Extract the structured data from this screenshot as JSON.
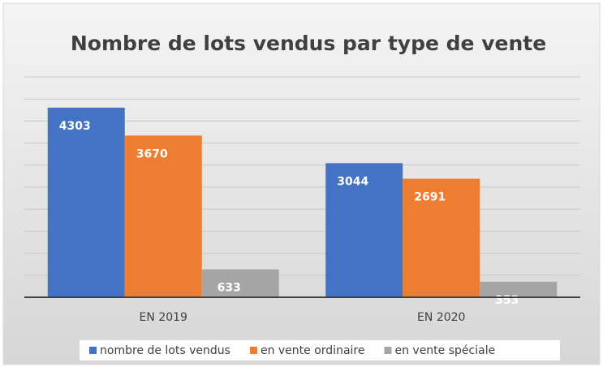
{
  "chart_data": {
    "type": "bar",
    "title": "Nombre de lots vendus par type de vente",
    "categories": [
      "EN 2019",
      "EN 2020"
    ],
    "series": [
      {
        "name": "nombre de lots vendus",
        "color": "#4472c4",
        "values": [
          4303,
          3044
        ]
      },
      {
        "name": "en vente ordinaire",
        "color": "#ed7d31",
        "values": [
          3670,
          2691
        ]
      },
      {
        "name": "en vente spéciale",
        "color": "#a5a5a5",
        "values": [
          633,
          353
        ]
      }
    ],
    "ylim": [
      0,
      5000
    ],
    "yticks": [
      0,
      500,
      1000,
      1500,
      2000,
      2500,
      3000,
      3500,
      4000,
      4500,
      5000
    ],
    "grid": true,
    "legend": "bottom"
  }
}
